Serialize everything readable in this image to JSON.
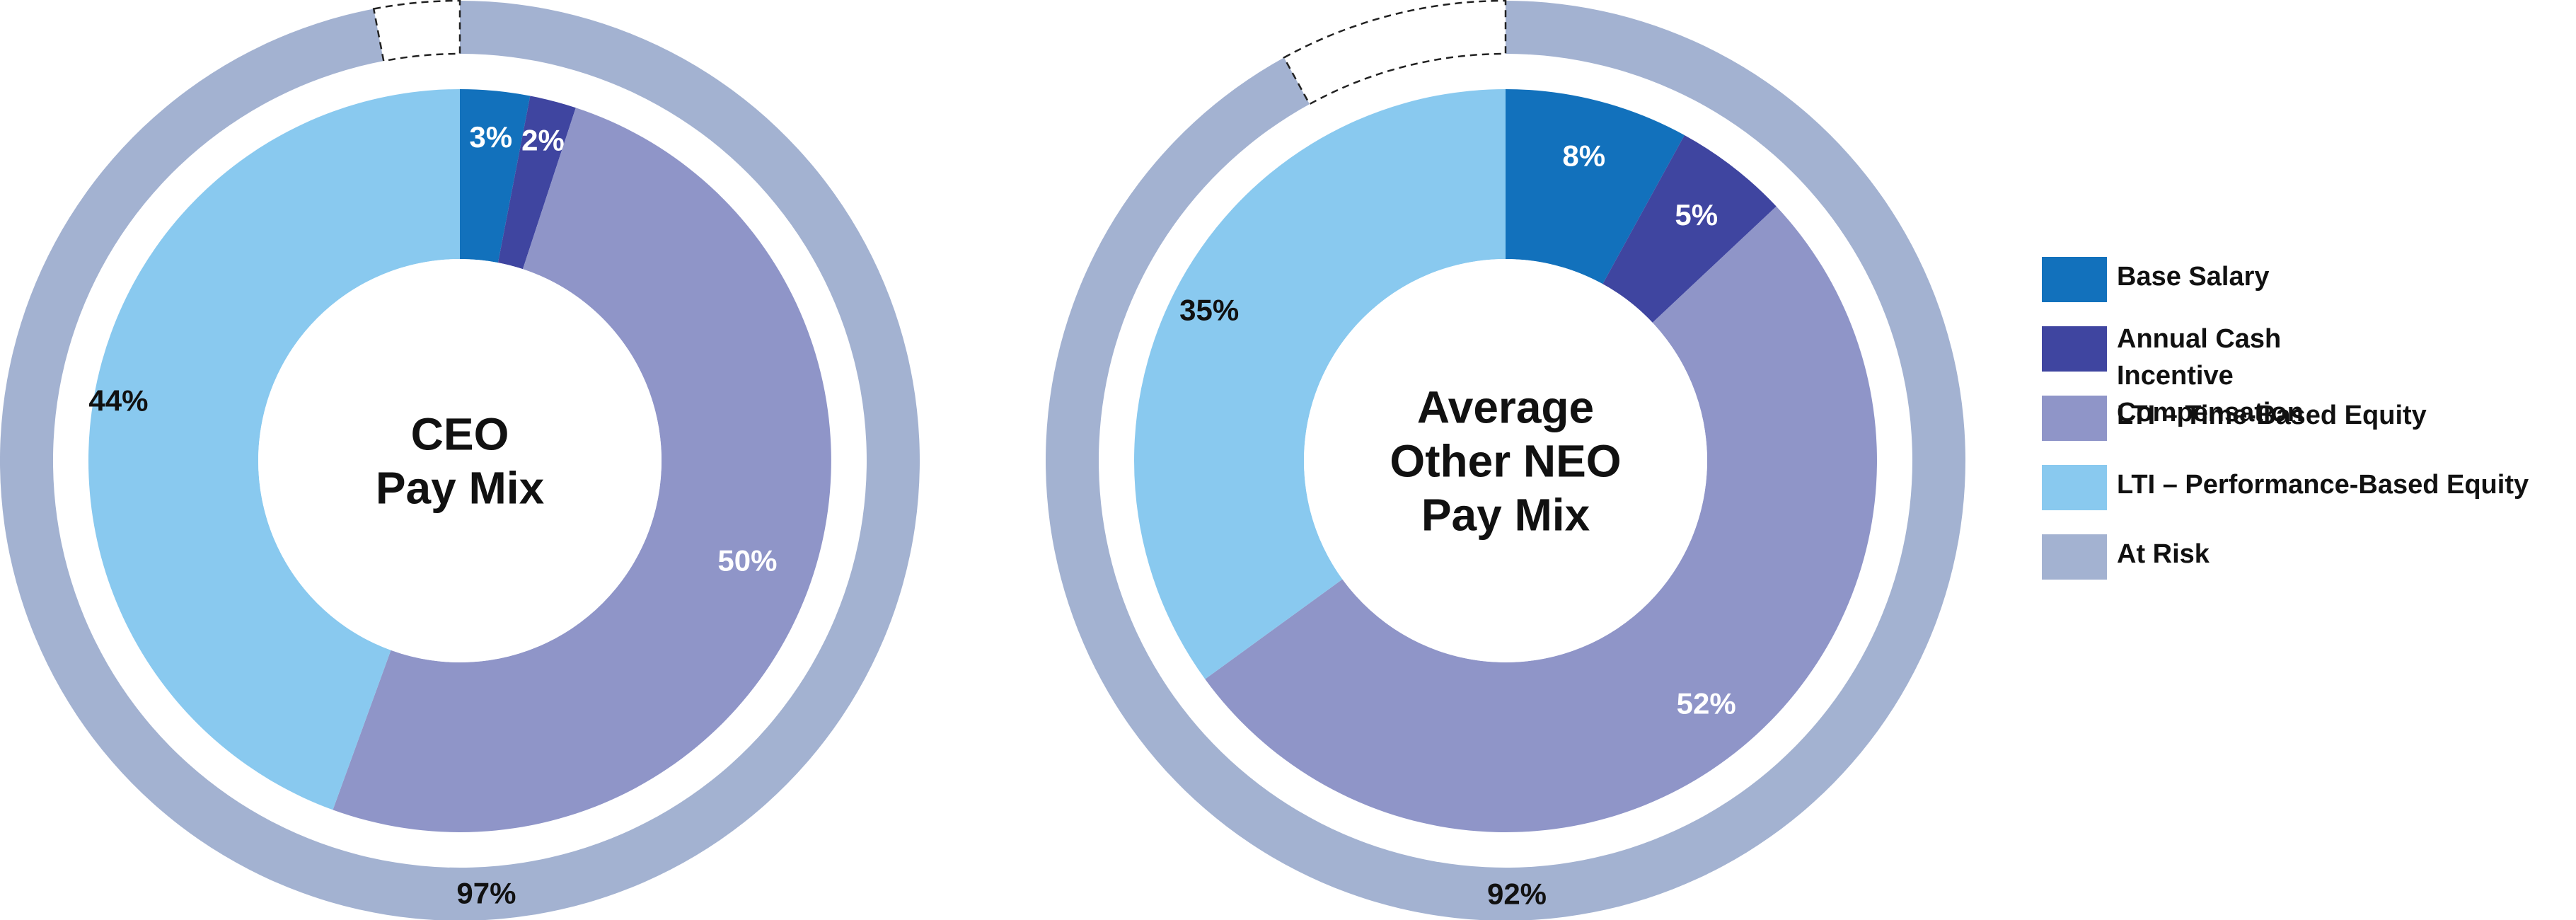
{
  "chart_data": [
    {
      "type": "donut",
      "center_title_lines": [
        "CEO",
        "Pay Mix"
      ],
      "segments": [
        {
          "name": "Base Salary",
          "value": 3,
          "label": "3%"
        },
        {
          "name": "Annual Cash Incentive Compensation",
          "value": 2,
          "label": "2%"
        },
        {
          "name": "LTI – Time-Based Equity",
          "value": 50,
          "label": "50%"
        },
        {
          "name": "LTI – Performance-Based Equity",
          "value": 44,
          "label": "44%"
        }
      ],
      "outer_ring": {
        "name": "At Risk",
        "value": 97,
        "label": "97%"
      }
    },
    {
      "type": "donut",
      "center_title_lines": [
        "Average",
        "Other NEO",
        "Pay Mix"
      ],
      "segments": [
        {
          "name": "Base Salary",
          "value": 8,
          "label": "8%"
        },
        {
          "name": "Annual Cash Incentive Compensation",
          "value": 5,
          "label": "5%"
        },
        {
          "name": "LTI – Time-Based Equity",
          "value": 52,
          "label": "52%"
        },
        {
          "name": "LTI – Performance-Based Equity",
          "value": 35,
          "label": "35%"
        }
      ],
      "outer_ring": {
        "name": "At Risk",
        "value": 92,
        "label": "92%"
      }
    }
  ],
  "legend": {
    "items": [
      {
        "label": "Base Salary",
        "color": "#1271BC"
      },
      {
        "label": "Annual Cash Incentive Compensation",
        "color": "#3F45A0"
      },
      {
        "label": "LTI – Time-Based Equity",
        "color": "#8F95C8"
      },
      {
        "label": "LTI – Performance-Based Equity",
        "color": "#89C9EF"
      },
      {
        "label": "At Risk",
        "color": "#A3B2D1"
      }
    ]
  },
  "colors": {
    "base_salary": "#1271BC",
    "annual_cash": "#3F45A0",
    "lti_time": "#8F95C8",
    "lti_perf": "#89C9EF",
    "at_risk": "#A3B2D1"
  }
}
